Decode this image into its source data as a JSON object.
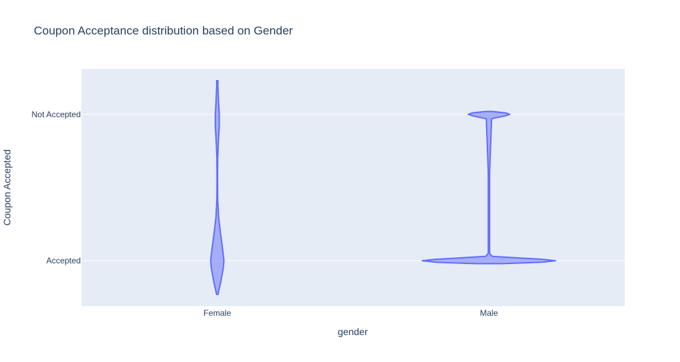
{
  "chart_data": {
    "type": "violin",
    "title": "Coupon Acceptance distribution based on Gender",
    "xlabel": "gender",
    "ylabel": "Coupon Accepted",
    "categories": [
      "Female",
      "Male"
    ],
    "y_categories": [
      "Accepted",
      "Not Accepted"
    ],
    "grid": true,
    "colors": {
      "plot_bg": "#e5ecf6",
      "grid": "#ffffff",
      "violin_line": "#636efa",
      "violin_fill": "rgba(99,110,250,0.5)",
      "text": "#2a3f5f"
    },
    "series": [
      {
        "category": "Female",
        "density_profile": [
          [
            -0.23,
            0.01
          ],
          [
            -0.15,
            0.05
          ],
          [
            -0.05,
            0.09
          ],
          [
            0.0,
            0.1
          ],
          [
            0.08,
            0.08
          ],
          [
            0.2,
            0.045
          ],
          [
            0.3,
            0.02
          ],
          [
            0.42,
            0.006
          ],
          [
            0.55,
            0.004
          ],
          [
            0.7,
            0.006
          ],
          [
            0.8,
            0.015
          ],
          [
            0.92,
            0.03
          ],
          [
            1.0,
            0.03
          ],
          [
            1.08,
            0.02
          ],
          [
            1.2,
            0.008
          ],
          [
            1.23,
            0.01
          ]
        ]
      },
      {
        "category": "Male",
        "density_profile": [
          [
            -0.02,
            0.2
          ],
          [
            -0.01,
            0.8
          ],
          [
            0.0,
            1.0
          ],
          [
            0.01,
            0.8
          ],
          [
            0.03,
            0.05
          ],
          [
            0.05,
            0.01
          ],
          [
            0.3,
            0.01
          ],
          [
            0.6,
            0.01
          ],
          [
            0.97,
            0.04
          ],
          [
            0.99,
            0.25
          ],
          [
            1.0,
            0.31
          ],
          [
            1.01,
            0.25
          ],
          [
            1.02,
            0.05
          ]
        ]
      }
    ]
  }
}
